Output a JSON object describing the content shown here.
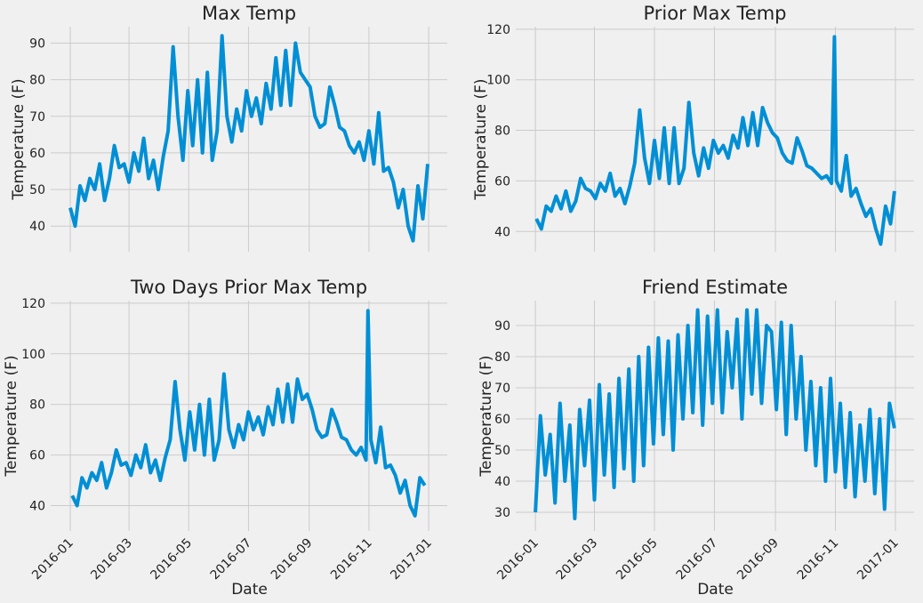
{
  "chart_data": [
    {
      "type": "line",
      "title": "Max Temp",
      "ylabel": "Temperature (F)",
      "color": "#008fd5",
      "grid": true,
      "xlim": [
        -20,
        385
      ],
      "xticks": [
        0,
        60,
        121,
        182,
        244,
        305,
        366
      ],
      "ylim": [
        33,
        94.5
      ],
      "yticks": [
        40,
        50,
        60,
        70,
        80,
        90
      ],
      "x": [
        0,
        5,
        10,
        15,
        20,
        25,
        30,
        35,
        40,
        45,
        50,
        55,
        60,
        65,
        70,
        75,
        80,
        85,
        90,
        95,
        100,
        105,
        110,
        115,
        120,
        125,
        130,
        135,
        140,
        145,
        150,
        155,
        160,
        165,
        170,
        175,
        180,
        185,
        190,
        195,
        200,
        205,
        210,
        215,
        220,
        225,
        230,
        235,
        240,
        245,
        250,
        255,
        260,
        265,
        270,
        275,
        280,
        285,
        290,
        295,
        300,
        305,
        310,
        315,
        320,
        325,
        330,
        335,
        340,
        345,
        350,
        355,
        360,
        365
      ],
      "values": [
        45,
        40,
        51,
        47,
        53,
        50,
        57,
        47,
        53,
        62,
        56,
        57,
        52,
        60,
        55,
        64,
        53,
        58,
        50,
        59,
        66,
        89,
        70,
        58,
        77,
        62,
        80,
        60,
        82,
        58,
        66,
        92,
        70,
        63,
        72,
        66,
        77,
        70,
        75,
        68,
        79,
        72,
        86,
        73,
        88,
        73,
        90,
        82,
        80,
        78,
        70,
        67,
        68,
        78,
        73,
        67,
        66,
        62,
        60,
        63,
        58,
        66,
        57,
        71,
        55,
        56,
        52,
        45,
        50,
        40,
        36,
        51,
        42,
        57
      ]
    },
    {
      "type": "line",
      "title": "Prior Max Temp",
      "ylabel": "Temperature (F)",
      "color": "#008fd5",
      "grid": true,
      "xlim": [
        -20,
        385
      ],
      "xticks": [
        0,
        60,
        121,
        182,
        244,
        305,
        366
      ],
      "ylim": [
        32,
        121
      ],
      "yticks": [
        40,
        60,
        80,
        100,
        120
      ],
      "x": [
        1,
        6,
        11,
        16,
        21,
        26,
        31,
        36,
        41,
        46,
        51,
        56,
        61,
        66,
        71,
        76,
        81,
        86,
        91,
        96,
        101,
        106,
        111,
        116,
        121,
        126,
        131,
        136,
        141,
        146,
        151,
        156,
        161,
        166,
        171,
        176,
        181,
        186,
        191,
        196,
        201,
        206,
        211,
        216,
        221,
        226,
        231,
        236,
        241,
        246,
        251,
        256,
        261,
        266,
        271,
        276,
        281,
        286,
        291,
        296,
        301,
        304,
        306,
        311,
        316,
        321,
        326,
        331,
        336,
        341,
        346,
        351,
        356,
        361,
        365
      ],
      "values": [
        45,
        41,
        50,
        48,
        54,
        49,
        56,
        48,
        52,
        61,
        57,
        56,
        53,
        59,
        56,
        63,
        54,
        57,
        51,
        58,
        67,
        88,
        69,
        59,
        76,
        61,
        81,
        59,
        81,
        59,
        65,
        91,
        71,
        62,
        73,
        65,
        76,
        71,
        74,
        69,
        78,
        73,
        85,
        74,
        87,
        74,
        89,
        83,
        79,
        77,
        71,
        68,
        67,
        77,
        72,
        66,
        65,
        63,
        61,
        62,
        59,
        117,
        60,
        56,
        70,
        54,
        57,
        51,
        46,
        49,
        41,
        35,
        50,
        43,
        56
      ]
    },
    {
      "type": "line",
      "title": "Two Days Prior Max Temp",
      "ylabel": "Temperature (F)",
      "xlabel": "Date",
      "color": "#008fd5",
      "grid": true,
      "xlim": [
        -20,
        385
      ],
      "xticks": [
        {
          "value": 0,
          "label": "2016-01"
        },
        {
          "value": 60,
          "label": "2016-03"
        },
        {
          "value": 121,
          "label": "2016-05"
        },
        {
          "value": 182,
          "label": "2016-07"
        },
        {
          "value": 244,
          "label": "2016-09"
        },
        {
          "value": 305,
          "label": "2016-11"
        },
        {
          "value": 366,
          "label": "2017-01"
        }
      ],
      "ylim": [
        30,
        121
      ],
      "yticks": [
        40,
        60,
        80,
        100,
        120
      ],
      "x": [
        2,
        7,
        12,
        17,
        22,
        27,
        32,
        37,
        42,
        47,
        52,
        57,
        62,
        67,
        72,
        77,
        82,
        87,
        92,
        97,
        102,
        107,
        112,
        117,
        122,
        127,
        132,
        137,
        142,
        147,
        152,
        157,
        162,
        167,
        172,
        177,
        182,
        187,
        192,
        197,
        202,
        207,
        212,
        217,
        222,
        227,
        232,
        237,
        242,
        247,
        252,
        257,
        262,
        267,
        272,
        277,
        282,
        287,
        292,
        297,
        302,
        304,
        307,
        312,
        317,
        322,
        327,
        332,
        337,
        342,
        347,
        352,
        357,
        362
      ],
      "values": [
        44,
        40,
        51,
        47,
        53,
        50,
        57,
        47,
        53,
        62,
        56,
        57,
        52,
        60,
        55,
        64,
        53,
        58,
        50,
        59,
        66,
        89,
        70,
        58,
        77,
        62,
        80,
        60,
        82,
        58,
        66,
        92,
        70,
        63,
        72,
        66,
        77,
        70,
        75,
        68,
        79,
        72,
        86,
        73,
        88,
        73,
        90,
        82,
        84,
        78,
        70,
        67,
        68,
        78,
        73,
        67,
        66,
        62,
        60,
        63,
        58,
        117,
        66,
        57,
        71,
        55,
        56,
        52,
        45,
        50,
        40,
        36,
        51,
        48
      ]
    },
    {
      "type": "line",
      "title": "Friend Estimate",
      "ylabel": "Temperature (F)",
      "xlabel": "Date",
      "color": "#008fd5",
      "grid": true,
      "xlim": [
        -20,
        385
      ],
      "xticks": [
        {
          "value": 0,
          "label": "2016-01"
        },
        {
          "value": 60,
          "label": "2016-03"
        },
        {
          "value": 121,
          "label": "2016-05"
        },
        {
          "value": 182,
          "label": "2016-07"
        },
        {
          "value": 244,
          "label": "2016-09"
        },
        {
          "value": 305,
          "label": "2016-11"
        },
        {
          "value": 366,
          "label": "2017-01"
        }
      ],
      "ylim": [
        24,
        98
      ],
      "yticks": [
        30,
        40,
        50,
        60,
        70,
        80,
        90
      ],
      "x": [
        0,
        5,
        10,
        15,
        20,
        25,
        30,
        35,
        40,
        45,
        50,
        55,
        60,
        65,
        70,
        75,
        80,
        85,
        90,
        95,
        100,
        105,
        110,
        115,
        120,
        125,
        130,
        135,
        140,
        145,
        150,
        155,
        160,
        165,
        170,
        175,
        180,
        185,
        190,
        195,
        200,
        205,
        210,
        215,
        220,
        225,
        230,
        235,
        240,
        245,
        250,
        255,
        260,
        265,
        270,
        275,
        280,
        285,
        290,
        295,
        300,
        305,
        310,
        315,
        320,
        325,
        330,
        335,
        340,
        345,
        350,
        355,
        360,
        365
      ],
      "values": [
        30,
        61,
        42,
        55,
        33,
        65,
        40,
        58,
        28,
        63,
        45,
        66,
        34,
        71,
        42,
        68,
        38,
        73,
        44,
        76,
        40,
        80,
        45,
        83,
        52,
        86,
        55,
        85,
        50,
        87,
        60,
        90,
        62,
        95,
        58,
        93,
        65,
        95,
        62,
        88,
        70,
        92,
        60,
        95,
        68,
        95,
        65,
        90,
        88,
        63,
        91,
        55,
        90,
        60,
        80,
        50,
        72,
        45,
        70,
        40,
        73,
        43,
        65,
        38,
        62,
        35,
        58,
        40,
        63,
        36,
        60,
        31,
        65,
        57
      ]
    }
  ]
}
